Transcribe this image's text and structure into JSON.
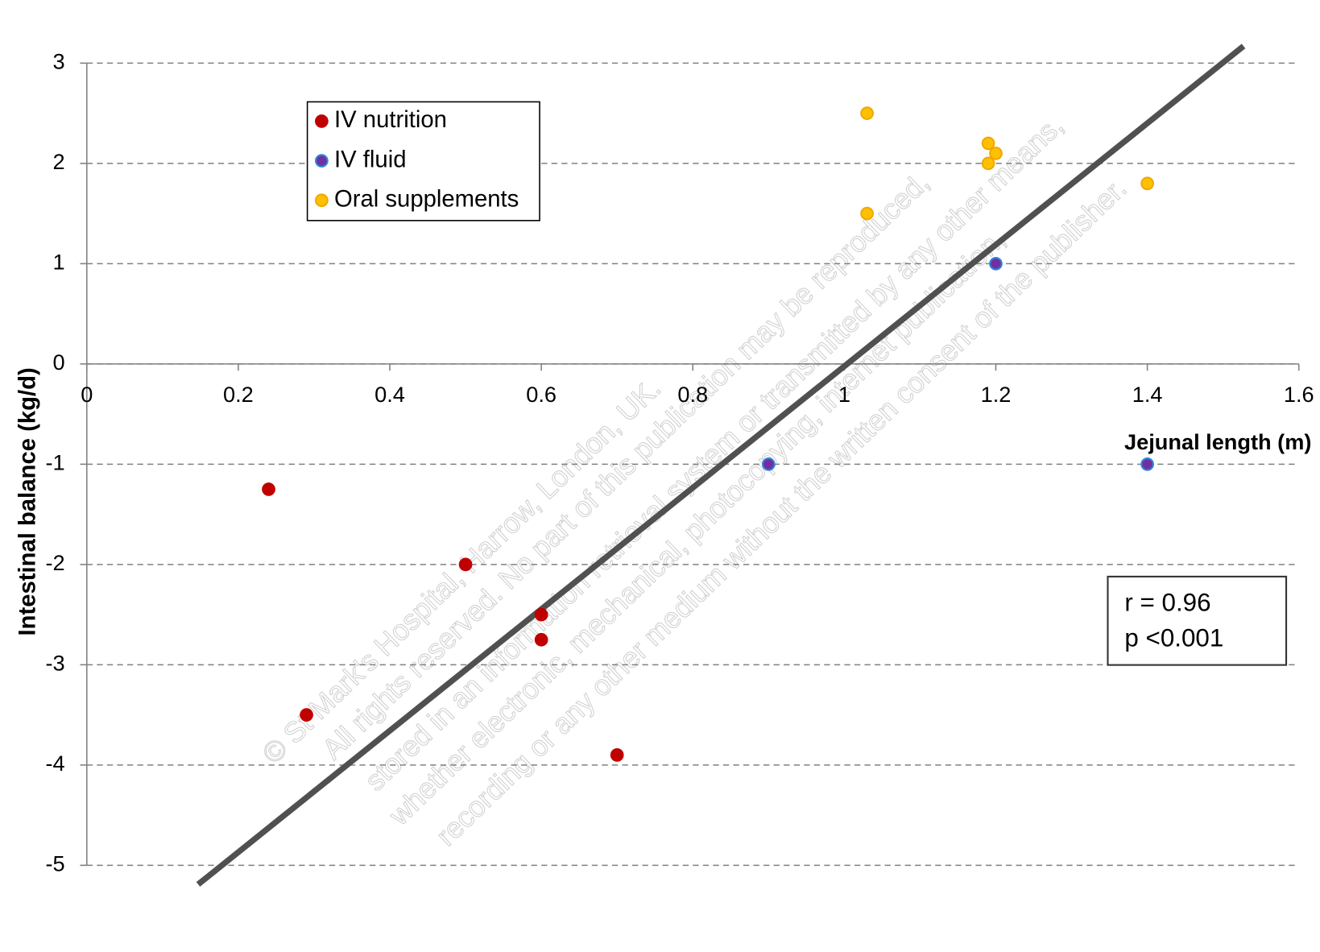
{
  "chart_data": {
    "type": "scatter",
    "x_label": "Jejunal length (m)",
    "y_label": "Intestinal balance (kg/d)",
    "xlim": [
      0,
      1.6
    ],
    "ylim": [
      -5,
      3
    ],
    "xticks": [
      0,
      0.2,
      0.4,
      0.6,
      0.8,
      1,
      1.2,
      1.4,
      1.6
    ],
    "yticks": [
      -5,
      -4,
      -3,
      -2,
      -1,
      0,
      1,
      2,
      3
    ],
    "grid": true,
    "legend": "upper left",
    "series": [
      {
        "name": "IV nutrition",
        "color": "#c00000",
        "x": [
          0.24,
          0.29,
          0.5,
          0.6,
          0.6,
          0.7
        ],
        "values": [
          -1.25,
          -3.5,
          -2,
          -2.5,
          -2.75,
          -3.9
        ]
      },
      {
        "name": "IV fluid",
        "color": "#7030a0",
        "x": [
          0.9,
          1.2,
          1.4
        ],
        "values": [
          -1,
          1,
          -1
        ]
      },
      {
        "name": "Oral supplements",
        "color": "#ffc000",
        "x": [
          1.03,
          1.19,
          1.19,
          1.2,
          1.4,
          1.03
        ],
        "values": [
          2.5,
          2.2,
          2.0,
          2.1,
          1.8,
          1.5
        ]
      }
    ],
    "trendline": {
      "color": "#505050",
      "x": [
        0.147,
        1.527
      ],
      "values": [
        -5.19,
        3.17
      ]
    },
    "annotations": [
      "r = 0.96",
      "p <0.001"
    ],
    "watermark": [
      "© St Mark's Hospital, Harrow, London, UK.",
      "All rights reserved. No part of this publication may be reproduced,",
      "stored in an information retrieval system or transmitted by any other means,",
      "whether electronic, mechanical, photocopying, internet publication,",
      "recording or any other medium without the written consent of the publisher."
    ]
  }
}
